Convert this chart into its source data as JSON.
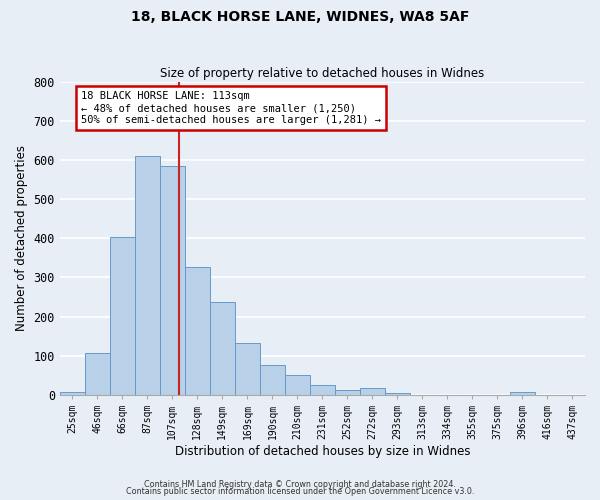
{
  "title": "18, BLACK HORSE LANE, WIDNES, WA8 5AF",
  "subtitle": "Size of property relative to detached houses in Widnes",
  "xlabel": "Distribution of detached houses by size in Widnes",
  "ylabel": "Number of detached properties",
  "bin_labels": [
    "25sqm",
    "46sqm",
    "66sqm",
    "87sqm",
    "107sqm",
    "128sqm",
    "149sqm",
    "169sqm",
    "190sqm",
    "210sqm",
    "231sqm",
    "252sqm",
    "272sqm",
    "293sqm",
    "313sqm",
    "334sqm",
    "355sqm",
    "375sqm",
    "396sqm",
    "416sqm",
    "437sqm"
  ],
  "bar_heights": [
    7,
    107,
    404,
    611,
    585,
    327,
    237,
    133,
    77,
    50,
    25,
    12,
    16,
    3,
    0,
    0,
    0,
    0,
    8,
    0,
    0
  ],
  "bar_color": "#b8d0e8",
  "bar_edge_color": "#6699cc",
  "background_color": "#e8eef5",
  "grid_color": "#ffffff",
  "annotation_title": "18 BLACK HORSE LANE: 113sqm",
  "annotation_line1": "← 48% of detached houses are smaller (1,250)",
  "annotation_line2": "50% of semi-detached houses are larger (1,281) →",
  "annotation_box_color": "#ffffff",
  "annotation_box_edge_color": "#cc0000",
  "red_line_x": 4.286,
  "ylim": [
    0,
    800
  ],
  "yticks": [
    0,
    100,
    200,
    300,
    400,
    500,
    600,
    700,
    800
  ],
  "footer1": "Contains HM Land Registry data © Crown copyright and database right 2024.",
  "footer2": "Contains public sector information licensed under the Open Government Licence v3.0."
}
